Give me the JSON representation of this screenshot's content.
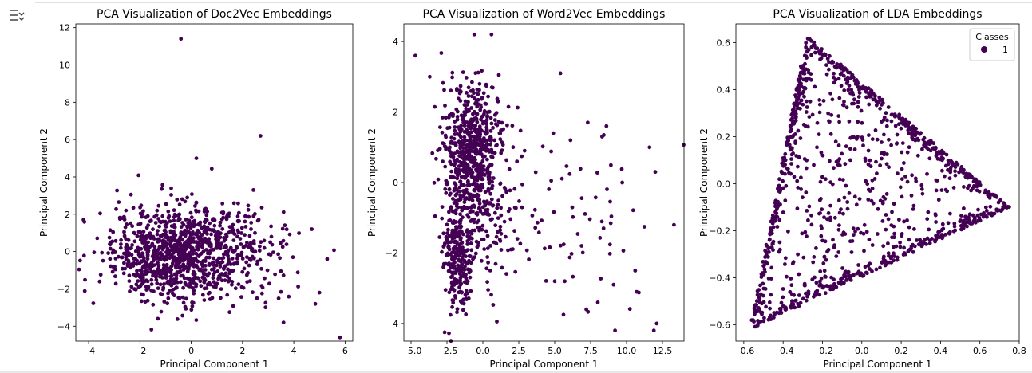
{
  "ui": {
    "output_toggle_icon": "collapse-output-icon"
  },
  "colors": {
    "point": "#440154",
    "axis": "#000000",
    "legend_border": "#cccccc"
  },
  "chart_data": [
    {
      "type": "scatter",
      "title": "PCA Visualization of Doc2Vec Embeddings",
      "xlabel": "Principal Component 1",
      "ylabel": "Principal Component 2",
      "xlim": [
        -4.5,
        6.3
      ],
      "ylim": [
        -4.8,
        12.2
      ],
      "xticks": [
        -4,
        -2,
        0,
        2,
        4,
        6
      ],
      "yticks": [
        -4,
        -2,
        0,
        2,
        4,
        6,
        8,
        10,
        12
      ],
      "grid": false,
      "legend": null,
      "series": [
        {
          "points": [
            [
              -0.4,
              11.4
            ],
            [
              2.7,
              6.2
            ],
            [
              0.2,
              5.0
            ],
            [
              -4.2,
              1.7
            ],
            [
              5.8,
              -4.6
            ],
            [
              3.6,
              -3.8
            ],
            [
              5.3,
              -0.4
            ],
            [
              5.0,
              -2.2
            ],
            [
              4.7,
              1.2
            ],
            [
              -1.3,
              -3.6
            ]
          ],
          "clusters": [
            {
              "cx": -0.4,
              "cy": 0.0,
              "sx": 1.3,
              "sy": 1.2,
              "n": 650
            },
            {
              "cx": 0.8,
              "cy": 0.0,
              "sx": 1.8,
              "sy": 1.4,
              "n": 300
            },
            {
              "cx": -1.5,
              "cy": -0.6,
              "sx": 1.2,
              "sy": 1.1,
              "n": 150
            }
          ]
        }
      ]
    },
    {
      "type": "scatter",
      "title": "PCA Visualization of Word2Vec Embeddings",
      "xlabel": "Principal Component 1",
      "ylabel": "Principal Component 2",
      "xlim": [
        -5.5,
        14.0
      ],
      "ylim": [
        -4.5,
        4.5
      ],
      "xticks": [
        -5.0,
        -2.5,
        0.0,
        2.5,
        5.0,
        7.5,
        10.0,
        12.5
      ],
      "yticks": [
        -4,
        -2,
        0,
        2,
        4
      ],
      "grid": false,
      "legend": null,
      "series": [
        {
          "points": [
            [
              -0.6,
              4.2
            ],
            [
              0.6,
              4.2
            ],
            [
              -4.7,
              3.6
            ],
            [
              -3.7,
              3.0
            ],
            [
              5.4,
              3.1
            ],
            [
              7.3,
              1.7
            ],
            [
              8.6,
              1.6
            ],
            [
              8.3,
              1.3
            ],
            [
              11.6,
              1.0
            ],
            [
              12.0,
              0.3
            ],
            [
              13.3,
              -1.2
            ],
            [
              9.7,
              0.0
            ],
            [
              8.4,
              -1.3
            ],
            [
              9.1,
              -2.9
            ],
            [
              11.9,
              -4.2
            ],
            [
              9.2,
              -4.2
            ],
            [
              10.7,
              -3.1
            ],
            [
              7.2,
              -3.6
            ],
            [
              5.0,
              -2.8
            ],
            [
              5.7,
              -2.8
            ],
            [
              8.0,
              -3.4
            ],
            [
              12.1,
              -4.0
            ],
            [
              4.9,
              1.4
            ],
            [
              6.1,
              1.2
            ],
            [
              10.6,
              -2.5
            ]
          ],
          "clusters": [
            {
              "cx": -0.9,
              "cy": 0.8,
              "sx": 0.9,
              "sy": 1.0,
              "n": 550
            },
            {
              "cx": -1.8,
              "cy": -2.2,
              "sx": 0.5,
              "sy": 0.8,
              "n": 250
            },
            {
              "cx": 0.3,
              "cy": -0.3,
              "sx": 1.4,
              "sy": 1.3,
              "n": 200
            },
            {
              "cx": 6.0,
              "cy": -1.0,
              "sx": 2.8,
              "sy": 1.5,
              "n": 60
            }
          ]
        }
      ]
    },
    {
      "type": "scatter",
      "title": "PCA Visualization of LDA Embeddings",
      "xlabel": "Principal Component 1",
      "ylabel": "Principal Component 2",
      "xlim": [
        -0.64,
        0.8
      ],
      "ylim": [
        -0.67,
        0.68
      ],
      "xticks": [
        -0.6,
        -0.4,
        -0.2,
        0.0,
        0.2,
        0.4,
        0.6,
        0.8
      ],
      "yticks": [
        -0.6,
        -0.4,
        -0.2,
        0.0,
        0.2,
        0.4,
        0.6
      ],
      "grid": false,
      "legend": {
        "title": "Classes",
        "entries": [
          "1"
        ],
        "position": "top-right"
      },
      "series": [
        {
          "name": "1",
          "triangle": [
            [
              -0.28,
              0.63
            ],
            [
              0.75,
              -0.1
            ],
            [
              -0.57,
              -0.62
            ]
          ],
          "n_edge": 650,
          "n_interior": 450
        }
      ]
    }
  ]
}
